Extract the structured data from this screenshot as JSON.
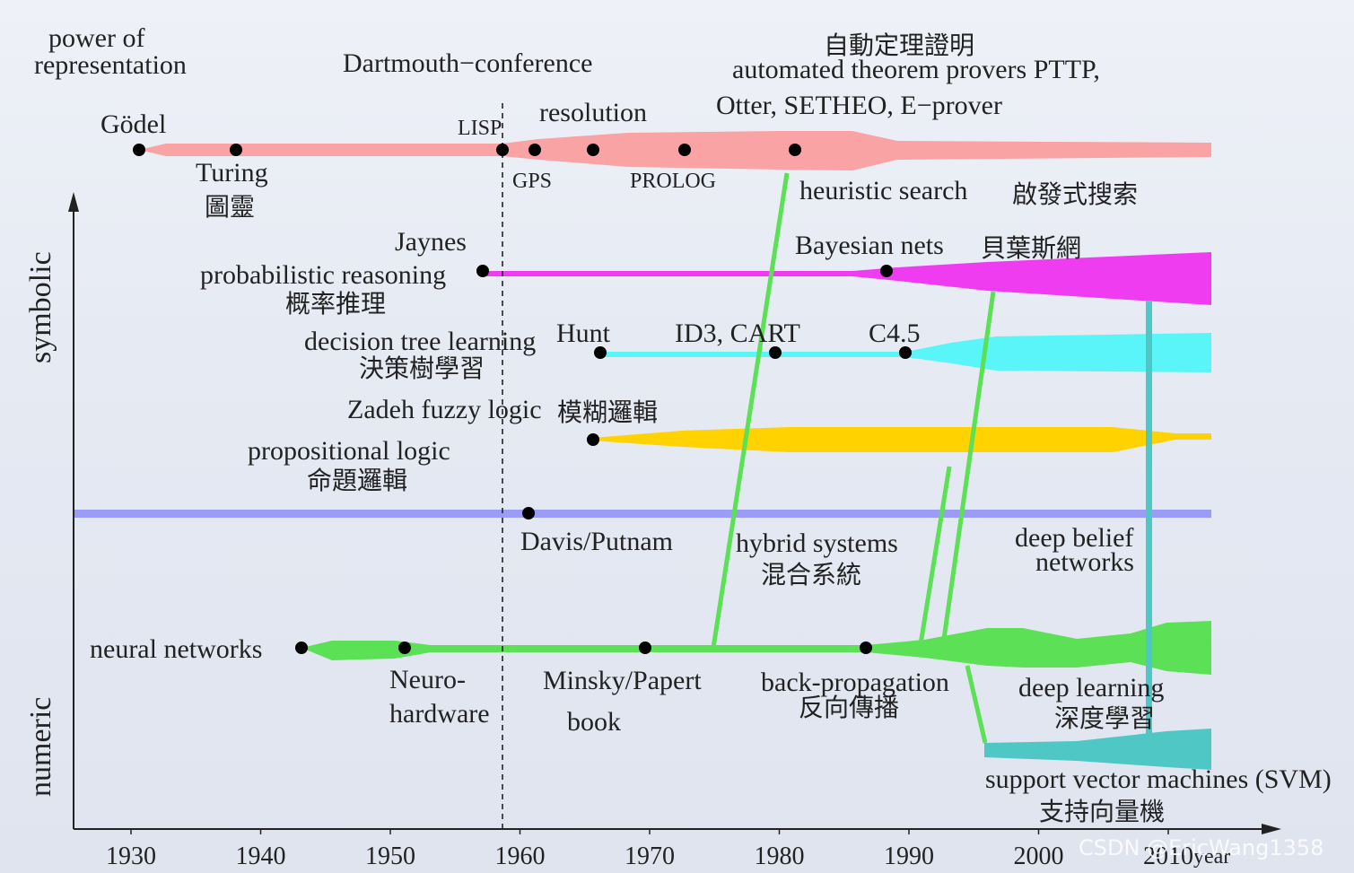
{
  "x_axis": {
    "ticks": [
      "1930",
      "1940",
      "1950",
      "1960",
      "1970",
      "1980",
      "1990",
      "2000",
      "2010"
    ],
    "unit": "year"
  },
  "y_axis": {
    "top": "power of",
    "top2": "representation",
    "upper": "symbolic",
    "lower": "numeric"
  },
  "labels": {
    "dartmouth": "Dartmouth−conference",
    "godel": "Gödel",
    "turing": "Turing",
    "turing_zh": "圖靈",
    "lisp": "LISP",
    "gps": "GPS",
    "resolution": "resolution",
    "prolog": "PROLOG",
    "atp_zh": "自動定理證明",
    "atp": "automated theorem provers  PTTP,",
    "atp2": "Otter, SETHEO, E−prover",
    "heuristic": "heuristic search",
    "heuristic_zh": "啟發式搜索",
    "jaynes": "Jaynes",
    "prob": "probabilistic reasoning",
    "prob_zh": "概率推理",
    "bayes": "Bayesian nets",
    "bayes_zh": "貝葉斯網",
    "dtree": "decision tree learning",
    "dtree_zh": "決策樹學習",
    "hunt": "Hunt",
    "id3": "ID3, CART",
    "c45": "C4.5",
    "fuzzy": "Zadeh fuzzy logic",
    "fuzzy_zh": "模糊邏輯",
    "prop": "propositional logic",
    "prop_zh": "命題邏輯",
    "davis": "Davis/Putnam",
    "hybrid": "hybrid systems",
    "hybrid_zh": "混合系統",
    "dbn": "deep belief",
    "dbn2": "networks",
    "nn": "neural networks",
    "neuro": "Neuro-",
    "neuro2": "hardware",
    "minsky": "Minsky/Papert",
    "minsky2": "book",
    "backprop": "back-propagation",
    "backprop_zh": "反向傳播",
    "dl": "deep learning",
    "dl_zh": "深度學習",
    "svm": "support vector machines (SVM)",
    "svm_zh": "支持向量機"
  },
  "colors": {
    "theorem": "#f9a3a5",
    "prob": "#f03cf0",
    "dtree": "#5af5f8",
    "fuzzy": "#ffd200",
    "divider": "#9b9cf5",
    "nn": "#5ce056",
    "svm": "#4ec7c5",
    "hybrid_line": "#5ce056"
  },
  "watermark": "CSDN @EricWang1358"
}
